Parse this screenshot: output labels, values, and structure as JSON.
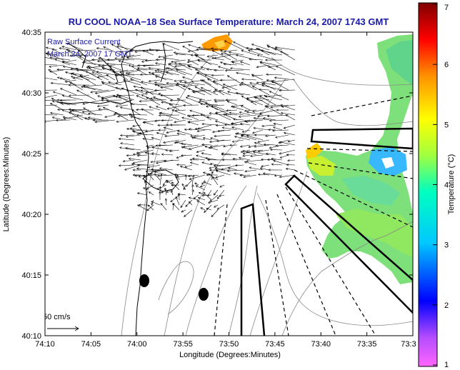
{
  "title": "RU COOL  NOAA−18  Sea Surface Temperature:  March 24, 2007 1743 GMT",
  "legend": {
    "line1": "Raw Surface Current",
    "line2": "March 24, 2007 17 GMT"
  },
  "scale_label": "50 cm/s",
  "axes": {
    "xlabel": "Longitude (Degrees:Minutes)",
    "ylabel": "Latitude (Degrees:Minutes)",
    "xticks": [
      "74:10",
      "74:05",
      "74:00",
      "73:55",
      "73:50",
      "73:45",
      "73:40",
      "73:35",
      "73:3"
    ],
    "yticks": [
      "40:35",
      "40:30",
      "40:25",
      "40:20",
      "40:15",
      "40:10"
    ]
  },
  "colorbar": {
    "label": "Temperature (°C)",
    "ticks": [
      "7",
      "6",
      "5",
      "4",
      "3",
      "2",
      "1"
    ],
    "min": 1,
    "max": 7
  }
}
